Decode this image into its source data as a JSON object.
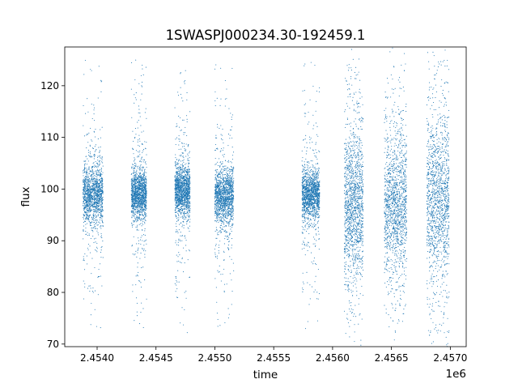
{
  "chart_data": {
    "type": "scatter",
    "title": "1SWASPJ000234.30-192459.1",
    "xlabel": "time",
    "ylabel": "flux",
    "x_offset_label": "1e6",
    "xlim": [
      2453725,
      2457135
    ],
    "ylim": [
      69.5,
      127.5
    ],
    "x_ticks": [
      2.454,
      2.4545,
      2.455,
      2.4555,
      2.456,
      2.4565,
      2.457
    ],
    "x_tick_labels": [
      "2.4540",
      "2.4545",
      "2.4550",
      "2.4555",
      "2.4560",
      "2.4565",
      "2.4570"
    ],
    "y_ticks": [
      70,
      80,
      90,
      100,
      110,
      120
    ],
    "y_tick_labels": [
      "70",
      "80",
      "90",
      "100",
      "110",
      "120"
    ],
    "grid": false,
    "legend": "none",
    "marker_color": "#1f77b4",
    "series": [
      {
        "seasons": [
          {
            "x_range": [
              2453880,
              2454050
            ],
            "flux_center": 99.0,
            "core_spread": 2.6,
            "outlier_range": [
              73,
              125
            ]
          },
          {
            "x_range": [
              2454290,
              2454420
            ],
            "flux_center": 99.0,
            "core_spread": 2.2,
            "outlier_range": [
              73,
              125
            ]
          },
          {
            "x_range": [
              2454660,
              2454790
            ],
            "flux_center": 99.5,
            "core_spread": 2.3,
            "outlier_range": [
              72,
              124
            ]
          },
          {
            "x_range": [
              2455000,
              2455160
            ],
            "flux_center": 98.5,
            "core_spread": 2.5,
            "outlier_range": [
              73,
              126
            ]
          },
          {
            "x_range": [
              2455740,
              2455890
            ],
            "flux_center": 99.0,
            "core_spread": 2.2,
            "outlier_range": [
              73,
              125
            ]
          },
          {
            "x_range": [
              2456100,
              2456260
            ],
            "flux_center": 97.0,
            "core_spread": 7.0,
            "outlier_range": [
              74,
              125
            ]
          },
          {
            "x_range": [
              2456440,
              2456630
            ],
            "flux_center": 97.0,
            "core_spread": 6.5,
            "outlier_range": [
              73,
              125
            ]
          },
          {
            "x_range": [
              2456800,
              2456990
            ],
            "flux_center": 98.0,
            "core_spread": 8.0,
            "outlier_range": [
              72,
              125
            ]
          }
        ]
      }
    ]
  }
}
